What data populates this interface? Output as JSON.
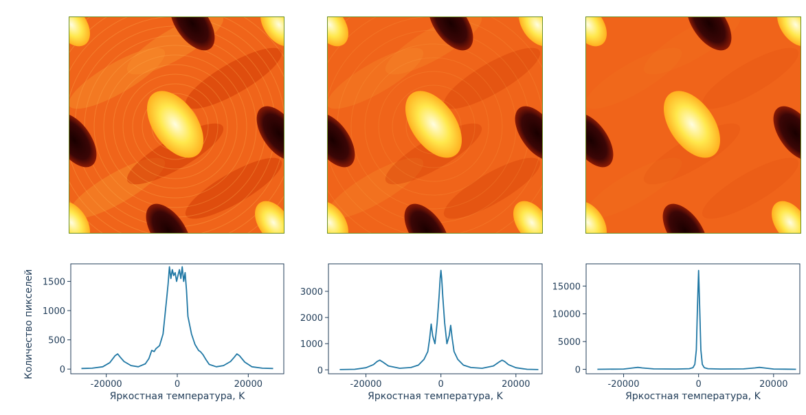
{
  "figure": {
    "shared_xlabel": "Яркостная температура, K",
    "shared_ylabel": "Количество пикселей"
  },
  "maps": [
    {
      "name": "temperature-map-1",
      "texture": "strong-ripples"
    },
    {
      "name": "temperature-map-2",
      "texture": "medium-ripples"
    },
    {
      "name": "temperature-map-3",
      "texture": "smooth"
    }
  ],
  "colors": {
    "line": "#1f77a4",
    "axis": "#1f3b57",
    "map_background": "#f0641a",
    "map_hot": "#ffe84d",
    "map_cold": "#3b0606",
    "map_border": "#6b8e23"
  },
  "chart_data": [
    {
      "type": "line",
      "title": "",
      "xlabel": "Яркостная температура, K",
      "ylabel": "Количество пикселей",
      "xlim": [
        -30000,
        30000
      ],
      "ylim": [
        -80,
        1800
      ],
      "xticks": [
        -20000,
        0,
        20000
      ],
      "xtick_labels": [
        "-20000",
        "0",
        "20000"
      ],
      "yticks": [
        0,
        500,
        1000,
        1500
      ],
      "ytick_labels": [
        "0",
        "500",
        "1000",
        "1500"
      ],
      "series": [
        {
          "name": "histogram-1",
          "x": [
            -27000,
            -24000,
            -21000,
            -19000,
            -17500,
            -16800,
            -16000,
            -15000,
            -13000,
            -11000,
            -9000,
            -8000,
            -7200,
            -6500,
            -6000,
            -5000,
            -4000,
            -3000,
            -2600,
            -2200,
            -1800,
            -1400,
            -1000,
            -600,
            -200,
            200,
            600,
            1000,
            1400,
            1800,
            2200,
            2600,
            3000,
            4000,
            5000,
            6000,
            6500,
            7200,
            8000,
            9000,
            11000,
            13000,
            15000,
            16000,
            16800,
            17500,
            19000,
            21000,
            24000,
            27000
          ],
          "y": [
            10,
            15,
            40,
            110,
            230,
            260,
            200,
            130,
            60,
            40,
            90,
            180,
            320,
            300,
            350,
            400,
            600,
            1200,
            1450,
            1750,
            1550,
            1700,
            1600,
            1650,
            1500,
            1600,
            1700,
            1550,
            1750,
            1500,
            1650,
            1350,
            900,
            600,
            420,
            320,
            300,
            250,
            170,
            80,
            40,
            60,
            130,
            200,
            260,
            230,
            120,
            40,
            15,
            10
          ]
        }
      ]
    },
    {
      "type": "line",
      "title": "",
      "xlabel": "Яркостная температура, K",
      "ylabel": "",
      "xlim": [
        -30000,
        27000
      ],
      "ylim": [
        -150,
        4050
      ],
      "xticks": [
        -20000,
        0,
        20000
      ],
      "xtick_labels": [
        "-20000",
        "0",
        "20000"
      ],
      "yticks": [
        0,
        1000,
        2000,
        3000
      ],
      "ytick_labels": [
        "0",
        "1000",
        "2000",
        "3000"
      ],
      "series": [
        {
          "name": "histogram-2",
          "x": [
            -27000,
            -23000,
            -20000,
            -18000,
            -17000,
            -16300,
            -15500,
            -14000,
            -11000,
            -8000,
            -6000,
            -4500,
            -3500,
            -3000,
            -2600,
            -2200,
            -1600,
            -1000,
            -500,
            -200,
            0,
            200,
            500,
            1000,
            1600,
            2200,
            2600,
            3000,
            3500,
            4500,
            6000,
            8000,
            11000,
            14000,
            15500,
            16300,
            17000,
            18000,
            20000,
            23000,
            26000
          ],
          "y": [
            10,
            20,
            80,
            200,
            320,
            370,
            300,
            150,
            60,
            90,
            180,
            400,
            700,
            1200,
            1750,
            1300,
            1000,
            1800,
            2800,
            3500,
            3800,
            3500,
            2800,
            1800,
            1000,
            1300,
            1700,
            1200,
            700,
            400,
            180,
            90,
            60,
            150,
            300,
            370,
            320,
            200,
            80,
            20,
            10
          ]
        }
      ]
    },
    {
      "type": "line",
      "title": "",
      "xlabel": "Яркостная температура, K",
      "ylabel": "",
      "xlim": [
        -30000,
        27000
      ],
      "ylim": [
        -800,
        19000
      ],
      "xticks": [
        -20000,
        0,
        20000
      ],
      "xtick_labels": [
        "-20000",
        "0",
        "20000"
      ],
      "yticks": [
        0,
        5000,
        10000,
        15000
      ],
      "ytick_labels": [
        "0",
        "5000",
        "10000",
        "15000"
      ],
      "series": [
        {
          "name": "histogram-3",
          "x": [
            -27000,
            -20000,
            -17500,
            -16200,
            -15000,
            -12000,
            -6000,
            -2500,
            -1500,
            -1000,
            -600,
            -300,
            0,
            300,
            600,
            1000,
            1500,
            2500,
            6000,
            12000,
            15000,
            16200,
            17500,
            20000,
            26000
          ],
          "y": [
            10,
            50,
            250,
            350,
            250,
            80,
            50,
            120,
            300,
            900,
            3500,
            11000,
            17800,
            11000,
            3500,
            900,
            300,
            120,
            50,
            80,
            250,
            350,
            250,
            50,
            10
          ]
        }
      ]
    }
  ]
}
